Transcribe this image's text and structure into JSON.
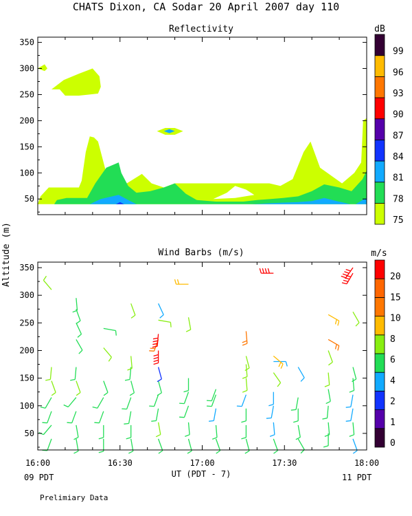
{
  "title": "CHATS Dixon, CA  Sodar  20 April 2007  day 110",
  "ylabel": "Altitude (m)",
  "xlabel": "UT  (PDT - 7)",
  "x_ticks": [
    "16:00",
    "16:30",
    "17:00",
    "17:30",
    "18:00"
  ],
  "local_start": "09 PDT",
  "local_end": "11 PDT",
  "footnote": "Prelimiary Data",
  "chart_data": [
    {
      "type": "heatmap",
      "title": "Reflectivity",
      "colorbar_unit": "dB",
      "x_range_ut": [
        "16:00",
        "18:00"
      ],
      "ylim": [
        20,
        360
      ],
      "yticks": [
        50,
        100,
        150,
        200,
        250,
        300,
        350
      ],
      "levels": [
        75,
        78,
        81,
        84,
        87,
        90,
        93,
        96,
        99
      ],
      "level_colors": [
        "#ccff00",
        "#22dd55",
        "#11aaff",
        "#1133ff",
        "#5500aa",
        "#ff0000",
        "#ff7700",
        "#ffbb00",
        "#330033"
      ],
      "polygons": [
        {
          "level": 75,
          "points": [
            [
              0,
              40
            ],
            [
              0.1,
              55
            ],
            [
              0.4,
              72
            ],
            [
              0.6,
              72
            ],
            [
              0.75,
              72
            ],
            [
              1.0,
              72
            ],
            [
              1.5,
              72
            ],
            [
              1.6,
              85
            ],
            [
              1.75,
              140
            ],
            [
              1.9,
              170
            ],
            [
              2.05,
              168
            ],
            [
              2.2,
              160
            ],
            [
              2.4,
              120
            ],
            [
              2.55,
              90
            ],
            [
              2.75,
              75
            ],
            [
              3.0,
              72
            ],
            [
              3.4,
              85
            ],
            [
              3.8,
              98
            ],
            [
              4.15,
              80
            ],
            [
              4.6,
              72
            ],
            [
              5.0,
              80
            ],
            [
              6.0,
              80
            ],
            [
              7.0,
              80
            ],
            [
              8.0,
              80
            ],
            [
              8.45,
              80
            ],
            [
              8.85,
              75
            ],
            [
              9.3,
              88
            ],
            [
              9.7,
              140
            ],
            [
              9.95,
              160
            ],
            [
              10.3,
              110
            ],
            [
              10.7,
              95
            ],
            [
              11.1,
              80
            ],
            [
              11.55,
              100
            ],
            [
              11.8,
              120
            ],
            [
              11.87,
              200
            ],
            [
              12.0,
              205
            ],
            [
              12.0,
              40
            ]
          ]
        },
        {
          "level": 75,
          "points": [
            [
              0,
              300
            ],
            [
              0.25,
              308
            ],
            [
              0.35,
              300
            ],
            [
              0.25,
              295
            ]
          ]
        },
        {
          "level": 75,
          "points": [
            [
              0.5,
              260
            ],
            [
              0.95,
              278
            ],
            [
              1.5,
              290
            ],
            [
              2.0,
              300
            ],
            [
              2.25,
              285
            ],
            [
              2.3,
              265
            ],
            [
              2.2,
              252
            ],
            [
              1.5,
              248
            ],
            [
              1.0,
              248
            ],
            [
              0.8,
              260
            ]
          ]
        },
        {
          "level": 75,
          "points": [
            [
              4.35,
              180
            ],
            [
              4.65,
              186
            ],
            [
              5.0,
              186
            ],
            [
              5.3,
              180
            ],
            [
              5.0,
              173
            ],
            [
              4.65,
              173
            ]
          ]
        },
        {
          "level": 78,
          "points": [
            [
              0.6,
              40
            ],
            [
              0.7,
              48
            ],
            [
              1.05,
              52
            ],
            [
              1.8,
              52
            ],
            [
              2.1,
              80
            ],
            [
              2.5,
              110
            ],
            [
              2.95,
              120
            ],
            [
              3.05,
              100
            ],
            [
              3.3,
              75
            ],
            [
              3.6,
              62
            ],
            [
              4.1,
              65
            ],
            [
              4.6,
              72
            ],
            [
              5.0,
              80
            ],
            [
              5.4,
              60
            ],
            [
              5.8,
              48
            ],
            [
              6.5,
              45
            ],
            [
              7.5,
              45
            ],
            [
              8.0,
              48
            ],
            [
              8.5,
              50
            ],
            [
              8.95,
              52
            ],
            [
              9.5,
              55
            ],
            [
              10.0,
              65
            ],
            [
              10.45,
              78
            ],
            [
              11.0,
              72
            ],
            [
              11.45,
              65
            ],
            [
              11.85,
              88
            ],
            [
              12.0,
              105
            ],
            [
              12.0,
              40
            ]
          ]
        },
        {
          "level": 81,
          "points": [
            [
              1.9,
              40
            ],
            [
              2.3,
              50
            ],
            [
              2.95,
              58
            ],
            [
              3.3,
              48
            ],
            [
              3.6,
              40
            ]
          ]
        },
        {
          "level": 81,
          "points": [
            [
              7.8,
              40
            ],
            [
              8.5,
              42
            ],
            [
              9.5,
              44
            ],
            [
              10.0,
              46
            ],
            [
              10.45,
              52
            ],
            [
              10.9,
              46
            ],
            [
              11.4,
              40
            ]
          ]
        },
        {
          "level": 81,
          "points": [
            [
              11.6,
              40
            ],
            [
              11.85,
              48
            ],
            [
              12.0,
              52
            ],
            [
              12.0,
              40
            ]
          ]
        },
        {
          "level": 81,
          "points": [
            [
              4.6,
              180
            ],
            [
              4.8,
              184
            ],
            [
              5.0,
              180
            ],
            [
              4.8,
              176
            ]
          ]
        },
        {
          "level": 84,
          "points": [
            [
              2.85,
              40
            ],
            [
              3.0,
              44
            ],
            [
              3.15,
              40
            ]
          ]
        }
      ],
      "holes": [
        {
          "points": [
            [
              6.4,
              50
            ],
            [
              6.9,
              62
            ],
            [
              7.2,
              75
            ],
            [
              7.6,
              68
            ],
            [
              7.9,
              58
            ],
            [
              7.2,
              52
            ]
          ]
        }
      ]
    },
    {
      "type": "scatter",
      "title": "Wind Barbs (m/s)",
      "colorbar_unit": "m/s",
      "x_range_ut": [
        "16:00",
        "18:00"
      ],
      "ylim": [
        20,
        360
      ],
      "yticks": [
        50,
        100,
        150,
        200,
        250,
        300,
        350
      ],
      "speed_levels": [
        0,
        1,
        2,
        4,
        6,
        8,
        10,
        15,
        20
      ],
      "speed_colors": [
        "#330033",
        "#5500aa",
        "#1133ff",
        "#11aaff",
        "#22dd55",
        "#88ee11",
        "#ffbb00",
        "#ff7700",
        "#ff6600",
        "#ff0000"
      ],
      "barbs": [
        {
          "t": 0.5,
          "z": 40,
          "s": 5,
          "d": 200
        },
        {
          "t": 0.5,
          "z": 65,
          "s": 4,
          "d": 220
        },
        {
          "t": 0.5,
          "z": 90,
          "s": 5,
          "d": 200
        },
        {
          "t": 0.5,
          "z": 115,
          "s": 4,
          "d": 210
        },
        {
          "t": 0.5,
          "z": 145,
          "s": 6,
          "d": 160
        },
        {
          "t": 0.5,
          "z": 170,
          "s": 7,
          "d": 185
        },
        {
          "t": 0.5,
          "z": 310,
          "s": 6,
          "d": 320
        },
        {
          "t": 1.4,
          "z": 40,
          "s": 5,
          "d": 170
        },
        {
          "t": 1.4,
          "z": 65,
          "s": 4,
          "d": 170
        },
        {
          "t": 1.4,
          "z": 90,
          "s": 5,
          "d": 200
        },
        {
          "t": 1.4,
          "z": 115,
          "s": 4,
          "d": 220
        },
        {
          "t": 1.4,
          "z": 145,
          "s": 6,
          "d": 160
        },
        {
          "t": 1.4,
          "z": 170,
          "s": 5,
          "d": 185
        },
        {
          "t": 1.4,
          "z": 220,
          "s": 5,
          "d": 150
        },
        {
          "t": 1.4,
          "z": 250,
          "s": 5,
          "d": 155
        },
        {
          "t": 1.4,
          "z": 275,
          "s": 5,
          "d": 160
        },
        {
          "t": 1.4,
          "z": 295,
          "s": 5,
          "d": 175
        },
        {
          "t": 2.4,
          "z": 40,
          "s": 5,
          "d": 180
        },
        {
          "t": 2.4,
          "z": 65,
          "s": 4,
          "d": 180
        },
        {
          "t": 2.4,
          "z": 90,
          "s": 5,
          "d": 200
        },
        {
          "t": 2.4,
          "z": 115,
          "s": 4,
          "d": 210
        },
        {
          "t": 2.4,
          "z": 145,
          "s": 5,
          "d": 160
        },
        {
          "t": 2.4,
          "z": 205,
          "s": 7,
          "d": 140
        },
        {
          "t": 2.4,
          "z": 240,
          "s": 5,
          "d": 100
        },
        {
          "t": 3.4,
          "z": 40,
          "s": 5,
          "d": 170
        },
        {
          "t": 3.4,
          "z": 65,
          "s": 4,
          "d": 180
        },
        {
          "t": 3.4,
          "z": 90,
          "s": 5,
          "d": 190
        },
        {
          "t": 3.4,
          "z": 115,
          "s": 4,
          "d": 200
        },
        {
          "t": 3.4,
          "z": 145,
          "s": 5,
          "d": 165
        },
        {
          "t": 3.4,
          "z": 170,
          "s": 5,
          "d": 185
        },
        {
          "t": 3.4,
          "z": 190,
          "s": 7,
          "d": 175
        },
        {
          "t": 3.4,
          "z": 285,
          "s": 6,
          "d": 160
        },
        {
          "t": 4.4,
          "z": 40,
          "s": 5,
          "d": 160
        },
        {
          "t": 4.4,
          "z": 70,
          "s": 7,
          "d": 170
        },
        {
          "t": 4.4,
          "z": 95,
          "s": 5,
          "d": 190
        },
        {
          "t": 4.4,
          "z": 120,
          "s": 4,
          "d": 200
        },
        {
          "t": 4.4,
          "z": 145,
          "s": 5,
          "d": 165
        },
        {
          "t": 4.4,
          "z": 170,
          "s": 1,
          "d": 165
        },
        {
          "t": 4.4,
          "z": 200,
          "s": 20,
          "d": 180
        },
        {
          "t": 4.4,
          "z": 220,
          "s": 10,
          "d": 200
        },
        {
          "t": 4.4,
          "z": 230,
          "s": 20,
          "d": 185
        },
        {
          "t": 4.4,
          "z": 255,
          "s": 6,
          "d": 100
        },
        {
          "t": 4.4,
          "z": 285,
          "s": 3,
          "d": 155
        },
        {
          "t": 5.5,
          "z": 40,
          "s": 5,
          "d": 165
        },
        {
          "t": 5.5,
          "z": 70,
          "s": 4,
          "d": 175
        },
        {
          "t": 5.5,
          "z": 100,
          "s": 4,
          "d": 200
        },
        {
          "t": 5.5,
          "z": 125,
          "s": 4,
          "d": 200
        },
        {
          "t": 5.5,
          "z": 150,
          "s": 4,
          "d": 180
        },
        {
          "t": 5.5,
          "z": 260,
          "s": 6,
          "d": 170
        },
        {
          "t": 5.5,
          "z": 320,
          "s": 8,
          "d": 270
        },
        {
          "t": 6.5,
          "z": 40,
          "s": 5,
          "d": 160
        },
        {
          "t": 6.5,
          "z": 65,
          "s": 4,
          "d": 175
        },
        {
          "t": 6.5,
          "z": 95,
          "s": 3,
          "d": 190
        },
        {
          "t": 6.5,
          "z": 120,
          "s": 4,
          "d": 200
        },
        {
          "t": 6.5,
          "z": 130,
          "s": 4,
          "d": 200
        },
        {
          "t": 7.6,
          "z": 40,
          "s": 4,
          "d": 165
        },
        {
          "t": 7.6,
          "z": 65,
          "s": 4,
          "d": 180
        },
        {
          "t": 7.6,
          "z": 95,
          "s": 4,
          "d": 180
        },
        {
          "t": 7.6,
          "z": 120,
          "s": 3,
          "d": 200
        },
        {
          "t": 7.6,
          "z": 150,
          "s": 6,
          "d": 175
        },
        {
          "t": 7.6,
          "z": 175,
          "s": 6,
          "d": 175
        },
        {
          "t": 7.6,
          "z": 190,
          "s": 6,
          "d": 165
        },
        {
          "t": 7.6,
          "z": 235,
          "s": 10,
          "d": 175
        },
        {
          "t": 8.6,
          "z": 40,
          "s": 4,
          "d": 160
        },
        {
          "t": 8.6,
          "z": 70,
          "s": 3,
          "d": 175
        },
        {
          "t": 8.6,
          "z": 100,
          "s": 3,
          "d": 190
        },
        {
          "t": 8.6,
          "z": 125,
          "s": 3,
          "d": 180
        },
        {
          "t": 8.6,
          "z": 160,
          "s": 6,
          "d": 145
        },
        {
          "t": 8.6,
          "z": 180,
          "s": 3,
          "d": 90
        },
        {
          "t": 8.6,
          "z": 190,
          "s": 9,
          "d": 130
        },
        {
          "t": 8.6,
          "z": 340,
          "s": 20,
          "d": 270
        },
        {
          "t": 9.5,
          "z": 40,
          "s": 4,
          "d": 150
        },
        {
          "t": 9.5,
          "z": 65,
          "s": 4,
          "d": 170
        },
        {
          "t": 9.5,
          "z": 95,
          "s": 4,
          "d": 180
        },
        {
          "t": 9.5,
          "z": 115,
          "s": 4,
          "d": 190
        },
        {
          "t": 9.5,
          "z": 170,
          "s": 2,
          "d": 150
        },
        {
          "t": 10.6,
          "z": 50,
          "s": 4,
          "d": 180
        },
        {
          "t": 10.6,
          "z": 70,
          "s": 4,
          "d": 175
        },
        {
          "t": 10.6,
          "z": 100,
          "s": 4,
          "d": 185
        },
        {
          "t": 10.6,
          "z": 130,
          "s": 5,
          "d": 170
        },
        {
          "t": 10.6,
          "z": 160,
          "s": 6,
          "d": 175
        },
        {
          "t": 10.6,
          "z": 200,
          "s": 6,
          "d": 160
        },
        {
          "t": 10.6,
          "z": 220,
          "s": 10,
          "d": 120
        },
        {
          "t": 10.6,
          "z": 265,
          "s": 9,
          "d": 120
        },
        {
          "t": 11.5,
          "z": 40,
          "s": 3,
          "d": 160
        },
        {
          "t": 11.5,
          "z": 70,
          "s": 4,
          "d": 175
        },
        {
          "t": 11.5,
          "z": 95,
          "s": 3,
          "d": 190
        },
        {
          "t": 11.5,
          "z": 120,
          "s": 3,
          "d": 190
        },
        {
          "t": 11.5,
          "z": 150,
          "s": 4,
          "d": 175
        },
        {
          "t": 11.5,
          "z": 170,
          "s": 4,
          "d": 165
        },
        {
          "t": 11.5,
          "z": 270,
          "s": 6,
          "d": 150
        },
        {
          "t": 11.5,
          "z": 340,
          "s": 20,
          "d": 210
        },
        {
          "t": 11.5,
          "z": 350,
          "s": 20,
          "d": 215
        }
      ]
    }
  ]
}
